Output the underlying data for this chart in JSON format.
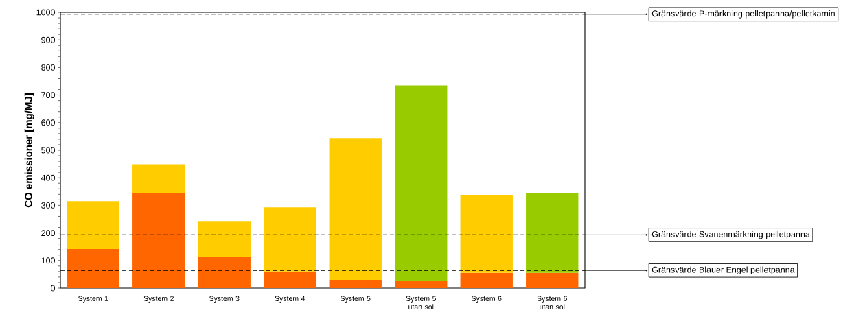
{
  "chart_data": {
    "type": "bar",
    "stacked": true,
    "ylabel": "CO emissioner [mg/MJ]",
    "categories": [
      "System 1",
      "System 2",
      "System 3",
      "System 4",
      "System 5",
      "System 5 utan sol",
      "System 6",
      "System 6 utan sol"
    ],
    "series": [
      {
        "color": "#ff6600",
        "values": [
          142,
          343,
          112,
          60,
          30,
          25,
          55,
          55
        ]
      },
      {
        "colors": [
          "#ffcc00",
          "#ffcc00",
          "#ffcc00",
          "#ffcc00",
          "#ffcc00",
          "#99cc00",
          "#ffcc00",
          "#99cc00"
        ],
        "values": [
          173,
          106,
          131,
          233,
          514,
          710,
          283,
          288
        ]
      }
    ],
    "ylim": [
      0,
      1000
    ],
    "yticks": [
      0,
      100,
      200,
      300,
      400,
      500,
      600,
      700,
      800,
      900,
      1000
    ],
    "ref_lines": [
      {
        "axis": "y",
        "value": 993,
        "label": "Gränsvärde P-märkning pelletpanna/pelletkamin",
        "color": "#000000",
        "line_style": "dashed"
      },
      {
        "axis": "y",
        "value": 193,
        "label": "Gränsvärde Svanenmärkning pelletpanna",
        "color": "#000000",
        "line_style": "dashed"
      },
      {
        "axis": "y",
        "value": 64,
        "label": "Gränsvärde Blauer Engel pelletpanna",
        "color": "#000000",
        "line_style": "dashed"
      }
    ],
    "grid": false
  }
}
